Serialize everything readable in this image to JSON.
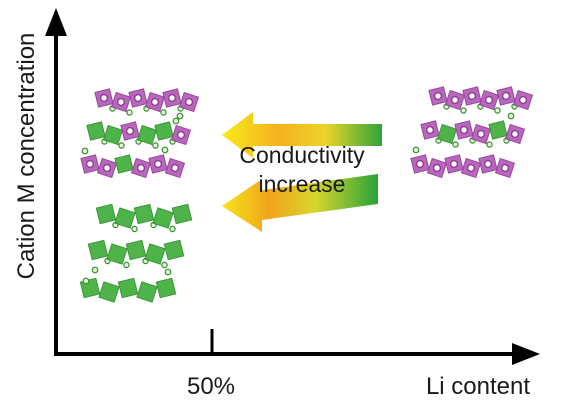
{
  "axes": {
    "y_label": "Cation M concentration",
    "x_label": "Li content",
    "x_tick_label": "50%"
  },
  "arrow_text": {
    "line1": "Conductivity",
    "line2": "increase"
  },
  "colors": {
    "axis": "#000000",
    "green": "#3fae3b",
    "green_dark": "#2f8f2c",
    "purple": "#b45ab8",
    "purple_dark": "#8e3b93",
    "yellow": "#f7e81a",
    "orange": "#f3a21b"
  }
}
